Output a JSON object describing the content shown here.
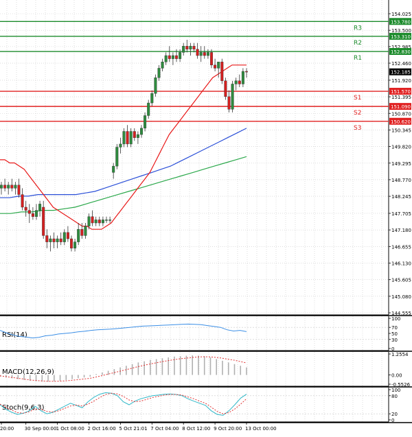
{
  "colors": {
    "background": "#ffffff",
    "grid": "#c8c8c8",
    "frame": "#000000",
    "bull": "#2e8b3e",
    "bear": "#d42020",
    "resistance": "#1a8a2a",
    "support": "#e02020",
    "ma_red": "#e81818",
    "ma_blue": "#2a4fd8",
    "ma_green": "#2aa84a",
    "rsi": "#3a8ee6",
    "macd_hist": "#b0b0b0",
    "macd_signal": "#e03030",
    "stoch_main": "#30b8c8",
    "stoch_signal": "#e03030",
    "price_tag": "#000000"
  },
  "chart_data": {
    "type": "candlestick",
    "price_axis": {
      "ticks": [
        "154.025",
        "153.500",
        "152.985",
        "152.460",
        "151.920",
        "151.395",
        "150.870",
        "150.345",
        "149.820",
        "149.295",
        "148.770",
        "148.245",
        "147.705",
        "147.180",
        "146.655",
        "146.130",
        "145.605",
        "145.080",
        "144.555"
      ],
      "range": [
        144.555,
        154.35
      ]
    },
    "time_axis": {
      "labels": [
        "20:00",
        "30 Sep 00:00",
        "1 Oct 08:00",
        "2 Oct 16:00",
        "5 Oct 21:01",
        "7 Oct 04:00",
        "8 Oct 12:00",
        "9 Oct 20:00",
        "13 Oct 00:00"
      ],
      "label_bar_index": [
        0,
        7,
        16,
        25,
        34,
        43,
        52,
        61,
        70
      ]
    },
    "levels": [
      {
        "name": "R3",
        "value": 153.78,
        "label": "153.780",
        "kind": "resistance"
      },
      {
        "name": "R2",
        "value": 153.31,
        "label": "153.310",
        "kind": "resistance"
      },
      {
        "name": "R1",
        "value": 152.83,
        "label": "152.830",
        "kind": "resistance"
      },
      {
        "name": "S1",
        "value": 151.57,
        "label": "151.570",
        "kind": "support"
      },
      {
        "name": "S2",
        "value": 151.09,
        "label": "151.090",
        "kind": "support"
      },
      {
        "name": "S3",
        "value": 150.62,
        "label": "150.620",
        "kind": "support"
      }
    ],
    "current_price": {
      "value": 152.185,
      "label": "152.185"
    },
    "candles": [
      [
        148.5,
        148.7,
        148.3,
        148.6
      ],
      [
        148.6,
        148.8,
        148.4,
        148.5
      ],
      [
        148.5,
        148.7,
        148.3,
        148.6
      ],
      [
        148.6,
        148.8,
        148.4,
        148.5
      ],
      [
        148.5,
        148.7,
        148.3,
        148.6
      ],
      [
        148.6,
        148.8,
        148.2,
        148.3
      ],
      [
        148.3,
        148.5,
        147.8,
        147.9
      ],
      [
        147.9,
        148.1,
        147.6,
        147.8
      ],
      [
        147.8,
        148.0,
        147.4,
        147.7
      ],
      [
        147.7,
        147.9,
        147.5,
        147.6
      ],
      [
        147.6,
        148.0,
        147.5,
        147.8
      ],
      [
        147.8,
        148.1,
        147.6,
        148.0
      ],
      [
        147.9,
        148.1,
        146.9,
        147.0
      ],
      [
        147.0,
        147.2,
        146.6,
        146.8
      ],
      [
        146.8,
        147.0,
        146.5,
        146.9
      ],
      [
        146.9,
        147.1,
        146.6,
        146.8
      ],
      [
        146.8,
        147.0,
        146.6,
        146.9
      ],
      [
        146.9,
        147.1,
        146.7,
        146.8
      ],
      [
        146.8,
        147.2,
        146.7,
        147.1
      ],
      [
        147.1,
        147.3,
        146.8,
        146.9
      ],
      [
        146.9,
        147.0,
        146.5,
        146.6
      ],
      [
        146.6,
        146.9,
        146.5,
        146.8
      ],
      [
        146.8,
        147.4,
        146.7,
        147.2
      ],
      [
        147.2,
        147.4,
        146.9,
        147.0
      ],
      [
        147.0,
        147.4,
        146.9,
        147.3
      ],
      [
        147.3,
        147.7,
        147.2,
        147.6
      ],
      [
        147.6,
        147.8,
        147.3,
        147.4
      ],
      [
        147.4,
        147.6,
        147.3,
        147.5
      ],
      [
        147.5,
        147.6,
        147.3,
        147.4
      ],
      [
        147.4,
        147.6,
        147.3,
        147.5
      ],
      [
        147.5,
        147.6,
        147.4,
        147.5
      ],
      [
        147.5,
        147.6,
        147.4,
        147.5
      ],
      [
        149.0,
        149.3,
        148.8,
        149.2
      ],
      [
        149.2,
        149.9,
        149.1,
        149.8
      ],
      [
        149.8,
        150.1,
        149.6,
        149.9
      ],
      [
        149.9,
        150.4,
        149.8,
        150.3
      ],
      [
        150.3,
        150.5,
        149.8,
        149.9
      ],
      [
        149.9,
        150.4,
        149.8,
        150.3
      ],
      [
        150.3,
        150.4,
        150.0,
        150.1
      ],
      [
        150.1,
        150.3,
        149.9,
        150.2
      ],
      [
        150.2,
        150.5,
        150.1,
        150.4
      ],
      [
        150.4,
        150.9,
        150.3,
        150.8
      ],
      [
        150.8,
        151.3,
        150.7,
        151.2
      ],
      [
        151.2,
        151.6,
        151.1,
        151.5
      ],
      [
        151.5,
        152.1,
        151.4,
        152.0
      ],
      [
        152.0,
        152.4,
        151.9,
        152.3
      ],
      [
        152.3,
        152.6,
        152.2,
        152.5
      ],
      [
        152.5,
        152.8,
        152.4,
        152.7
      ],
      [
        152.7,
        153.0,
        152.5,
        152.6
      ],
      [
        152.6,
        152.8,
        152.4,
        152.7
      ],
      [
        152.7,
        152.9,
        152.5,
        152.6
      ],
      [
        152.6,
        152.9,
        152.5,
        152.8
      ],
      [
        152.8,
        153.1,
        152.7,
        153.0
      ],
      [
        153.0,
        153.2,
        152.8,
        152.9
      ],
      [
        152.9,
        153.1,
        152.7,
        153.0
      ],
      [
        153.0,
        153.1,
        152.8,
        152.9
      ],
      [
        152.9,
        153.1,
        152.6,
        152.7
      ],
      [
        152.7,
        153.0,
        152.5,
        152.8
      ],
      [
        152.8,
        153.0,
        152.6,
        152.7
      ],
      [
        152.7,
        152.9,
        152.6,
        152.8
      ],
      [
        152.8,
        152.9,
        152.3,
        152.4
      ],
      [
        152.4,
        152.6,
        152.2,
        152.3
      ],
      [
        152.3,
        152.5,
        152.0,
        152.5
      ],
      [
        152.5,
        152.6,
        151.8,
        151.9
      ],
      [
        151.9,
        152.0,
        151.3,
        151.4
      ],
      [
        151.4,
        151.6,
        150.9,
        151.0
      ],
      [
        151.0,
        151.9,
        150.9,
        151.8
      ],
      [
        151.8,
        152.0,
        151.6,
        151.9
      ],
      [
        151.9,
        152.1,
        151.7,
        151.8
      ],
      [
        151.8,
        152.3,
        151.7,
        152.2
      ],
      [
        152.2,
        152.3,
        152.0,
        152.185
      ]
    ],
    "ma_red": [
      149.4,
      149.4,
      149.3,
      149.3,
      149.2,
      149.1,
      148.9,
      148.7,
      148.5,
      148.3,
      148.1,
      147.9,
      147.8,
      147.7,
      147.6,
      147.5,
      147.4,
      147.3,
      147.3,
      147.2,
      147.2,
      147.2,
      147.3,
      147.4,
      147.6,
      147.8,
      148.0,
      148.2,
      148.4,
      148.6,
      148.8,
      149.0,
      149.3,
      149.6,
      149.9,
      150.2,
      150.4,
      150.6,
      150.8,
      151.0,
      151.2,
      151.4,
      151.6,
      151.8,
      152.0,
      152.1,
      152.2,
      152.3,
      152.4,
      152.4,
      152.4,
      152.4
    ],
    "ma_red_start": 0,
    "ma_blue": [
      148.2,
      148.2,
      148.25,
      148.25,
      148.3,
      148.3,
      148.3,
      148.3,
      148.3,
      148.35,
      148.4,
      148.5,
      148.6,
      148.7,
      148.8,
      148.9,
      149.0,
      149.1,
      149.2,
      149.35,
      149.5,
      149.65,
      149.8,
      149.95,
      150.1,
      150.25,
      150.4
    ],
    "ma_blue_start": 0,
    "ma_green": [
      147.7,
      147.7,
      147.75,
      147.75,
      147.8,
      147.8,
      147.85,
      147.9,
      148.0,
      148.1,
      148.2,
      148.3,
      148.4,
      148.5,
      148.6,
      148.7,
      148.8,
      148.9,
      149.0,
      149.1,
      149.2,
      149.3,
      149.4,
      149.5
    ],
    "ma_green_start": 0,
    "rsi": {
      "label": "RSI(14)",
      "ticks": [
        "100",
        "70",
        "50",
        "30",
        "0"
      ],
      "tick_values": [
        100,
        70,
        50,
        30,
        0
      ],
      "values": [
        60,
        52,
        45,
        40,
        38,
        35,
        37,
        42,
        44,
        48,
        50,
        52,
        55,
        57,
        60,
        62,
        63,
        64,
        66,
        68,
        70,
        72,
        74,
        75,
        76,
        77,
        78,
        79,
        80,
        81,
        80,
        79,
        76,
        73,
        70,
        62,
        58,
        60,
        56
      ]
    },
    "macd": {
      "label": "MACD(12,26,9)",
      "ticks": [
        "1.2554",
        "0.00",
        "-0.5526"
      ],
      "tick_values": [
        1.2554,
        0.0,
        -0.5526
      ],
      "histogram": [
        -0.1,
        -0.15,
        -0.2,
        -0.25,
        -0.3,
        -0.35,
        -0.38,
        -0.4,
        -0.4,
        -0.38,
        -0.35,
        -0.3,
        -0.25,
        -0.2,
        -0.15,
        -0.1,
        0.05,
        0.15,
        0.25,
        0.35,
        0.45,
        0.55,
        0.65,
        0.75,
        0.82,
        0.9,
        0.95,
        1.0,
        1.05,
        1.1,
        1.12,
        1.15,
        1.17,
        1.16,
        1.12,
        1.05,
        0.95,
        0.85,
        0.75,
        0.65,
        0.55,
        0.45
      ],
      "signal": [
        -0.05,
        -0.1,
        -0.15,
        -0.2,
        -0.25,
        -0.3,
        -0.33,
        -0.36,
        -0.38,
        -0.38,
        -0.37,
        -0.35,
        -0.32,
        -0.28,
        -0.24,
        -0.2,
        -0.12,
        -0.04,
        0.05,
        0.14,
        0.23,
        0.32,
        0.41,
        0.5,
        0.58,
        0.66,
        0.73,
        0.8,
        0.86,
        0.92,
        0.97,
        1.01,
        1.05,
        1.08,
        1.09,
        1.08,
        1.05,
        1.0,
        0.94,
        0.88,
        0.8,
        0.72
      ]
    },
    "stoch": {
      "label": "Stoch(9,6,3)",
      "ticks": [
        "100",
        "80",
        "20",
        "0"
      ],
      "tick_values": [
        100,
        80,
        20,
        0
      ],
      "main": [
        50,
        35,
        25,
        18,
        22,
        30,
        45,
        30,
        20,
        25,
        35,
        45,
        55,
        48,
        40,
        60,
        75,
        85,
        90,
        88,
        80,
        60,
        50,
        62,
        70,
        75,
        80,
        82,
        85,
        86,
        84,
        80,
        70,
        62,
        55,
        48,
        30,
        18,
        15,
        30,
        50,
        72,
        85
      ],
      "signal": [
        52,
        42,
        32,
        24,
        22,
        27,
        36,
        35,
        28,
        26,
        30,
        38,
        46,
        49,
        46,
        52,
        62,
        74,
        84,
        88,
        86,
        78,
        66,
        60,
        62,
        68,
        74,
        78,
        82,
        84,
        84,
        82,
        76,
        70,
        62,
        55,
        42,
        28,
        20,
        24,
        36,
        52,
        70
      ]
    }
  }
}
